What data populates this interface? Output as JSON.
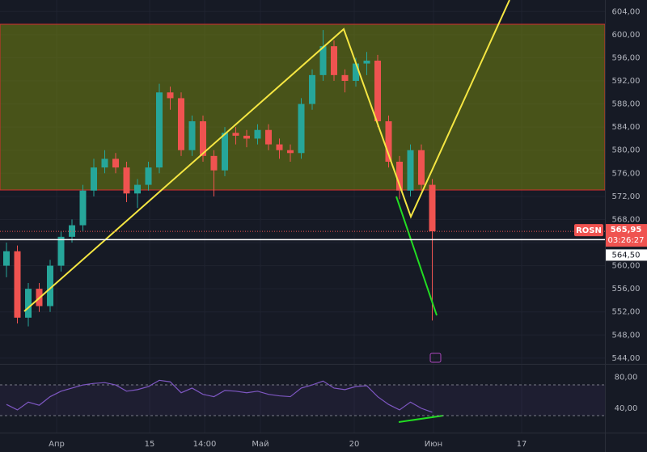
{
  "chart_data": {
    "type": "candlestick",
    "symbol": "ROSN",
    "countdown": "03:26:27",
    "last_price": {
      "value": 565.95,
      "label": "565,95"
    },
    "marker_price": {
      "value": 564.5,
      "label": "564,50"
    },
    "x_labels": [
      "Апр",
      "15",
      "14:00",
      "Май",
      "20",
      "Июн",
      "17"
    ],
    "open": [
      560,
      562.5,
      551,
      556,
      553,
      560,
      565,
      567,
      573,
      577,
      578.5,
      577,
      572.5,
      574,
      577,
      590,
      589,
      580,
      585,
      579,
      576.5,
      583,
      582.5,
      582,
      583.5,
      581,
      580,
      579.5,
      588,
      593,
      598,
      593,
      592,
      595,
      595.5,
      585,
      578,
      573,
      580,
      574
    ],
    "high": [
      564,
      563.5,
      557,
      557,
      561,
      566,
      568,
      574,
      578.5,
      580,
      579.5,
      578,
      575,
      578,
      591.5,
      591,
      590,
      586,
      586,
      580,
      584,
      584,
      583.5,
      584.5,
      584.5,
      582,
      581,
      589,
      594,
      600.8,
      599,
      594,
      596,
      597,
      596.5,
      586,
      579,
      581,
      581,
      575
    ],
    "low": [
      558,
      550,
      549.5,
      552,
      552,
      559,
      564,
      566,
      572,
      576,
      576,
      571,
      570,
      573,
      576,
      587,
      579,
      579,
      578,
      572,
      575.5,
      581,
      580.5,
      581,
      580,
      578.5,
      578,
      578.5,
      587,
      592,
      592,
      590,
      591,
      593,
      584,
      577,
      571.5,
      572,
      573,
      550.5
    ],
    "close": [
      562.5,
      551,
      556,
      553,
      560,
      565,
      567,
      573,
      577,
      578.5,
      577,
      572.5,
      574,
      577,
      590,
      589,
      580,
      585,
      579,
      576.5,
      583,
      582.5,
      582,
      583.5,
      581,
      580,
      579.5,
      588,
      593,
      598,
      593,
      592,
      595,
      595.5,
      585,
      578,
      573,
      580,
      574,
      565.95
    ],
    "up_color": "#26a69a",
    "down_color": "#ef5350",
    "ylim": [
      543,
      606
    ],
    "yticks": [
      {
        "value": 604,
        "label": "604,00"
      },
      {
        "value": 600,
        "label": "600,00"
      },
      {
        "value": 596,
        "label": "596,00"
      },
      {
        "value": 592,
        "label": "592,00"
      },
      {
        "value": 588,
        "label": "588,00"
      },
      {
        "value": 584,
        "label": "584,00"
      },
      {
        "value": 580,
        "label": "580,00"
      },
      {
        "value": 576,
        "label": "576,00"
      },
      {
        "value": 572,
        "label": "572,00"
      },
      {
        "value": 568,
        "label": "568,00"
      },
      {
        "value": 564,
        "label": "564,00"
      },
      {
        "value": 560,
        "label": "560,00"
      },
      {
        "value": 556,
        "label": "556,00"
      },
      {
        "value": 552,
        "label": "552,00"
      },
      {
        "value": 548,
        "label": "548,00"
      },
      {
        "value": 544,
        "label": "544,00"
      }
    ],
    "rsi": {
      "values": [
        45,
        38,
        48,
        44,
        55,
        62,
        66,
        70,
        72,
        73,
        70,
        62,
        64,
        68,
        76,
        74,
        60,
        66,
        58,
        55,
        63,
        62,
        60,
        62,
        58,
        56,
        55,
        66,
        70,
        75,
        66,
        64,
        68,
        69,
        55,
        45,
        38,
        48,
        40,
        35
      ],
      "color": "#7e57c2",
      "ylim": [
        12,
        95
      ],
      "yticks": [
        {
          "value": 80,
          "label": "80,00"
        },
        {
          "value": 40,
          "label": "40,00"
        }
      ]
    }
  }
}
